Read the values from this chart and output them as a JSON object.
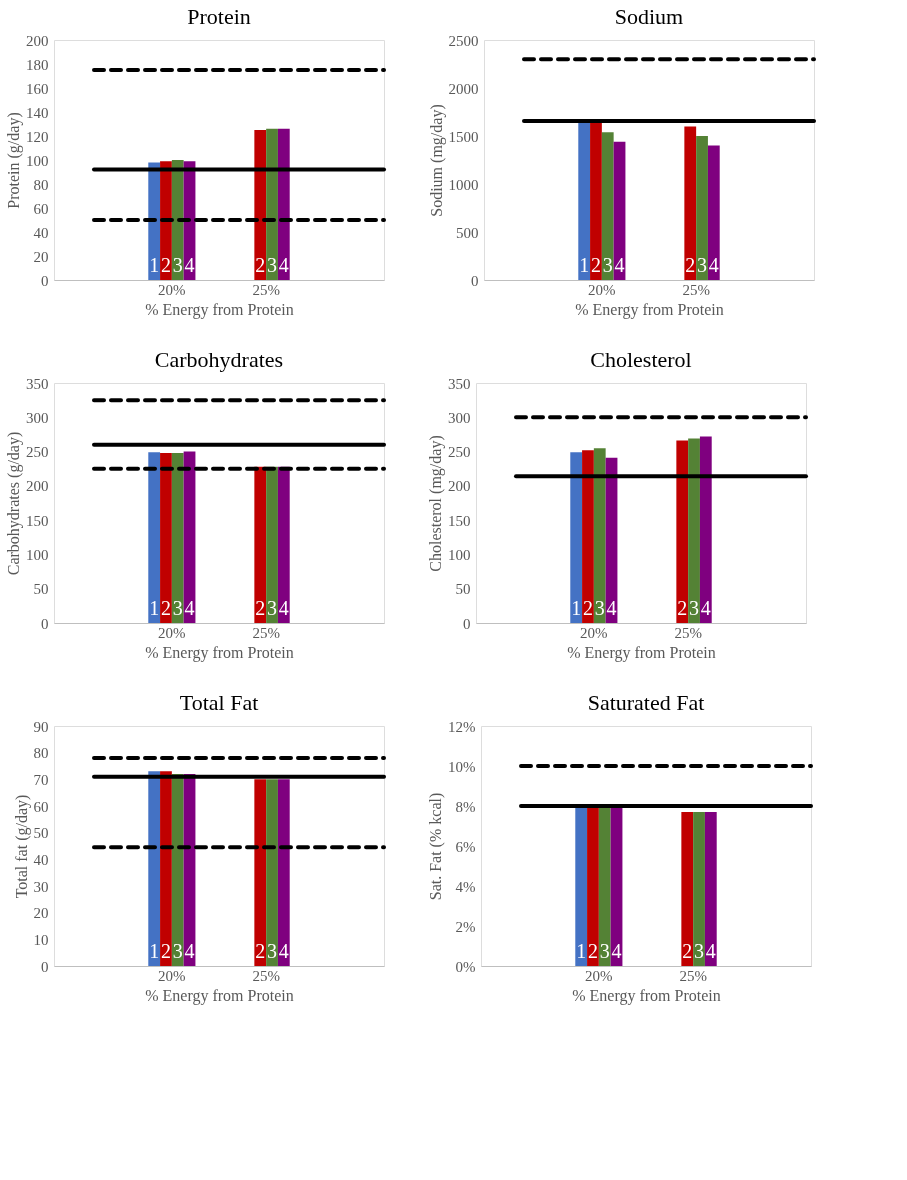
{
  "chart_data": [
    {
      "type": "bar",
      "title": "Protein",
      "xlabel": "% Energy from Protein",
      "ylabel": "Protein (g/day)",
      "categories": [
        "20%",
        "25%"
      ],
      "series": [
        {
          "name": "1",
          "color": "#4472c4",
          "values": [
            98,
            null
          ]
        },
        {
          "name": "2",
          "color": "#c00000",
          "values": [
            99,
            125
          ]
        },
        {
          "name": "3",
          "color": "#548235",
          "values": [
            100,
            126
          ]
        },
        {
          "name": "4",
          "color": "#7f007f",
          "values": [
            99,
            126
          ]
        }
      ],
      "ylim": [
        0,
        200
      ],
      "yticks": [
        0,
        20,
        40,
        60,
        80,
        100,
        120,
        140,
        160,
        180,
        200
      ],
      "ref_lines": [
        {
          "axis": "y",
          "value": 175,
          "line_style": "dashed",
          "color": "#000000"
        },
        {
          "axis": "y",
          "value": 92,
          "line_style": "solid",
          "color": "#000000"
        },
        {
          "axis": "y",
          "value": 50,
          "line_style": "dashed",
          "color": "#000000"
        }
      ],
      "grid": false,
      "legend": false
    },
    {
      "type": "bar",
      "title": "Sodium",
      "xlabel": "% Energy from Protein",
      "ylabel": "Sodium (mg/day)",
      "categories": [
        "20%",
        "25%"
      ],
      "series": [
        {
          "name": "1",
          "color": "#4472c4",
          "values": [
            1660,
            null
          ]
        },
        {
          "name": "2",
          "color": "#c00000",
          "values": [
            1640,
            1600
          ]
        },
        {
          "name": "3",
          "color": "#548235",
          "values": [
            1540,
            1500
          ]
        },
        {
          "name": "4",
          "color": "#7f007f",
          "values": [
            1440,
            1400
          ]
        }
      ],
      "ylim": [
        0,
        2500
      ],
      "yticks": [
        0,
        500,
        1000,
        1500,
        2000,
        2500
      ],
      "ref_lines": [
        {
          "axis": "y",
          "value": 2300,
          "line_style": "dashed",
          "color": "#000000"
        },
        {
          "axis": "y",
          "value": 1655,
          "line_style": "solid",
          "color": "#000000"
        }
      ],
      "grid": false,
      "legend": false
    },
    {
      "type": "bar",
      "title": "Carbohydrates",
      "xlabel": "% Energy from Protein",
      "ylabel": "Carbohydrates (g/day)",
      "categories": [
        "20%",
        "25%"
      ],
      "series": [
        {
          "name": "1",
          "color": "#4472c4",
          "values": [
            249,
            null
          ]
        },
        {
          "name": "2",
          "color": "#c00000",
          "values": [
            248,
            228
          ]
        },
        {
          "name": "3",
          "color": "#548235",
          "values": [
            248,
            228
          ]
        },
        {
          "name": "4",
          "color": "#7f007f",
          "values": [
            250,
            228
          ]
        }
      ],
      "ylim": [
        0,
        350
      ],
      "yticks": [
        0,
        50,
        100,
        150,
        200,
        250,
        300,
        350
      ],
      "ref_lines": [
        {
          "axis": "y",
          "value": 325,
          "line_style": "dashed",
          "color": "#000000"
        },
        {
          "axis": "y",
          "value": 260,
          "line_style": "solid",
          "color": "#000000"
        },
        {
          "axis": "y",
          "value": 225,
          "line_style": "dashed",
          "color": "#000000"
        }
      ],
      "grid": false,
      "legend": false
    },
    {
      "type": "bar",
      "title": "Cholesterol",
      "xlabel": "% Energy from Protein",
      "ylabel": "Cholesterol (mg/day)",
      "categories": [
        "20%",
        "25%"
      ],
      "series": [
        {
          "name": "1",
          "color": "#4472c4",
          "values": [
            249,
            null
          ]
        },
        {
          "name": "2",
          "color": "#c00000",
          "values": [
            252,
            266
          ]
        },
        {
          "name": "3",
          "color": "#548235",
          "values": [
            255,
            269
          ]
        },
        {
          "name": "4",
          "color": "#7f007f",
          "values": [
            241,
            272
          ]
        }
      ],
      "ylim": [
        0,
        350
      ],
      "yticks": [
        0,
        50,
        100,
        150,
        200,
        250,
        300,
        350
      ],
      "ref_lines": [
        {
          "axis": "y",
          "value": 300,
          "line_style": "dashed",
          "color": "#000000"
        },
        {
          "axis": "y",
          "value": 214,
          "line_style": "solid",
          "color": "#000000"
        }
      ],
      "grid": false,
      "legend": false
    },
    {
      "type": "bar",
      "title": "Total Fat",
      "xlabel": "% Energy from Protein",
      "ylabel": "Total fat (g/day)",
      "categories": [
        "20%",
        "25%"
      ],
      "series": [
        {
          "name": "1",
          "color": "#4472c4",
          "values": [
            73,
            null
          ]
        },
        {
          "name": "2",
          "color": "#c00000",
          "values": [
            73,
            70
          ]
        },
        {
          "name": "3",
          "color": "#548235",
          "values": [
            72,
            70
          ]
        },
        {
          "name": "4",
          "color": "#7f007f",
          "values": [
            72,
            70
          ]
        }
      ],
      "ylim": [
        0,
        90
      ],
      "yticks": [
        0,
        10,
        20,
        30,
        40,
        50,
        60,
        70,
        80,
        90
      ],
      "ref_lines": [
        {
          "axis": "y",
          "value": 78,
          "line_style": "dashed",
          "color": "#000000"
        },
        {
          "axis": "y",
          "value": 71,
          "line_style": "solid",
          "color": "#000000"
        },
        {
          "axis": "y",
          "value": 44.5,
          "line_style": "dashed",
          "color": "#000000"
        }
      ],
      "grid": false,
      "legend": false
    },
    {
      "type": "bar",
      "title": "Saturated Fat",
      "xlabel": "% Energy from Protein",
      "ylabel": "Sat. Fat (% kcal)",
      "categories": [
        "20%",
        "25%"
      ],
      "series": [
        {
          "name": "1",
          "color": "#4472c4",
          "values": [
            8,
            null
          ]
        },
        {
          "name": "2",
          "color": "#c00000",
          "values": [
            8,
            7.7
          ]
        },
        {
          "name": "3",
          "color": "#548235",
          "values": [
            8,
            7.7
          ]
        },
        {
          "name": "4",
          "color": "#7f007f",
          "values": [
            8,
            7.7
          ]
        }
      ],
      "ylim": [
        0,
        12
      ],
      "yticks": [
        {
          "value": 0,
          "label": "0%"
        },
        {
          "value": 2,
          "label": "2%"
        },
        {
          "value": 4,
          "label": "4%"
        },
        {
          "value": 6,
          "label": "6%"
        },
        {
          "value": 8,
          "label": "8%"
        },
        {
          "value": 10,
          "label": "10%"
        },
        {
          "value": 12,
          "label": "12%"
        }
      ],
      "ref_lines": [
        {
          "axis": "y",
          "value": 10,
          "line_style": "dashed",
          "color": "#000000"
        },
        {
          "axis": "y",
          "value": 8,
          "line_style": "solid",
          "color": "#000000"
        }
      ],
      "grid": false,
      "legend": false
    }
  ]
}
